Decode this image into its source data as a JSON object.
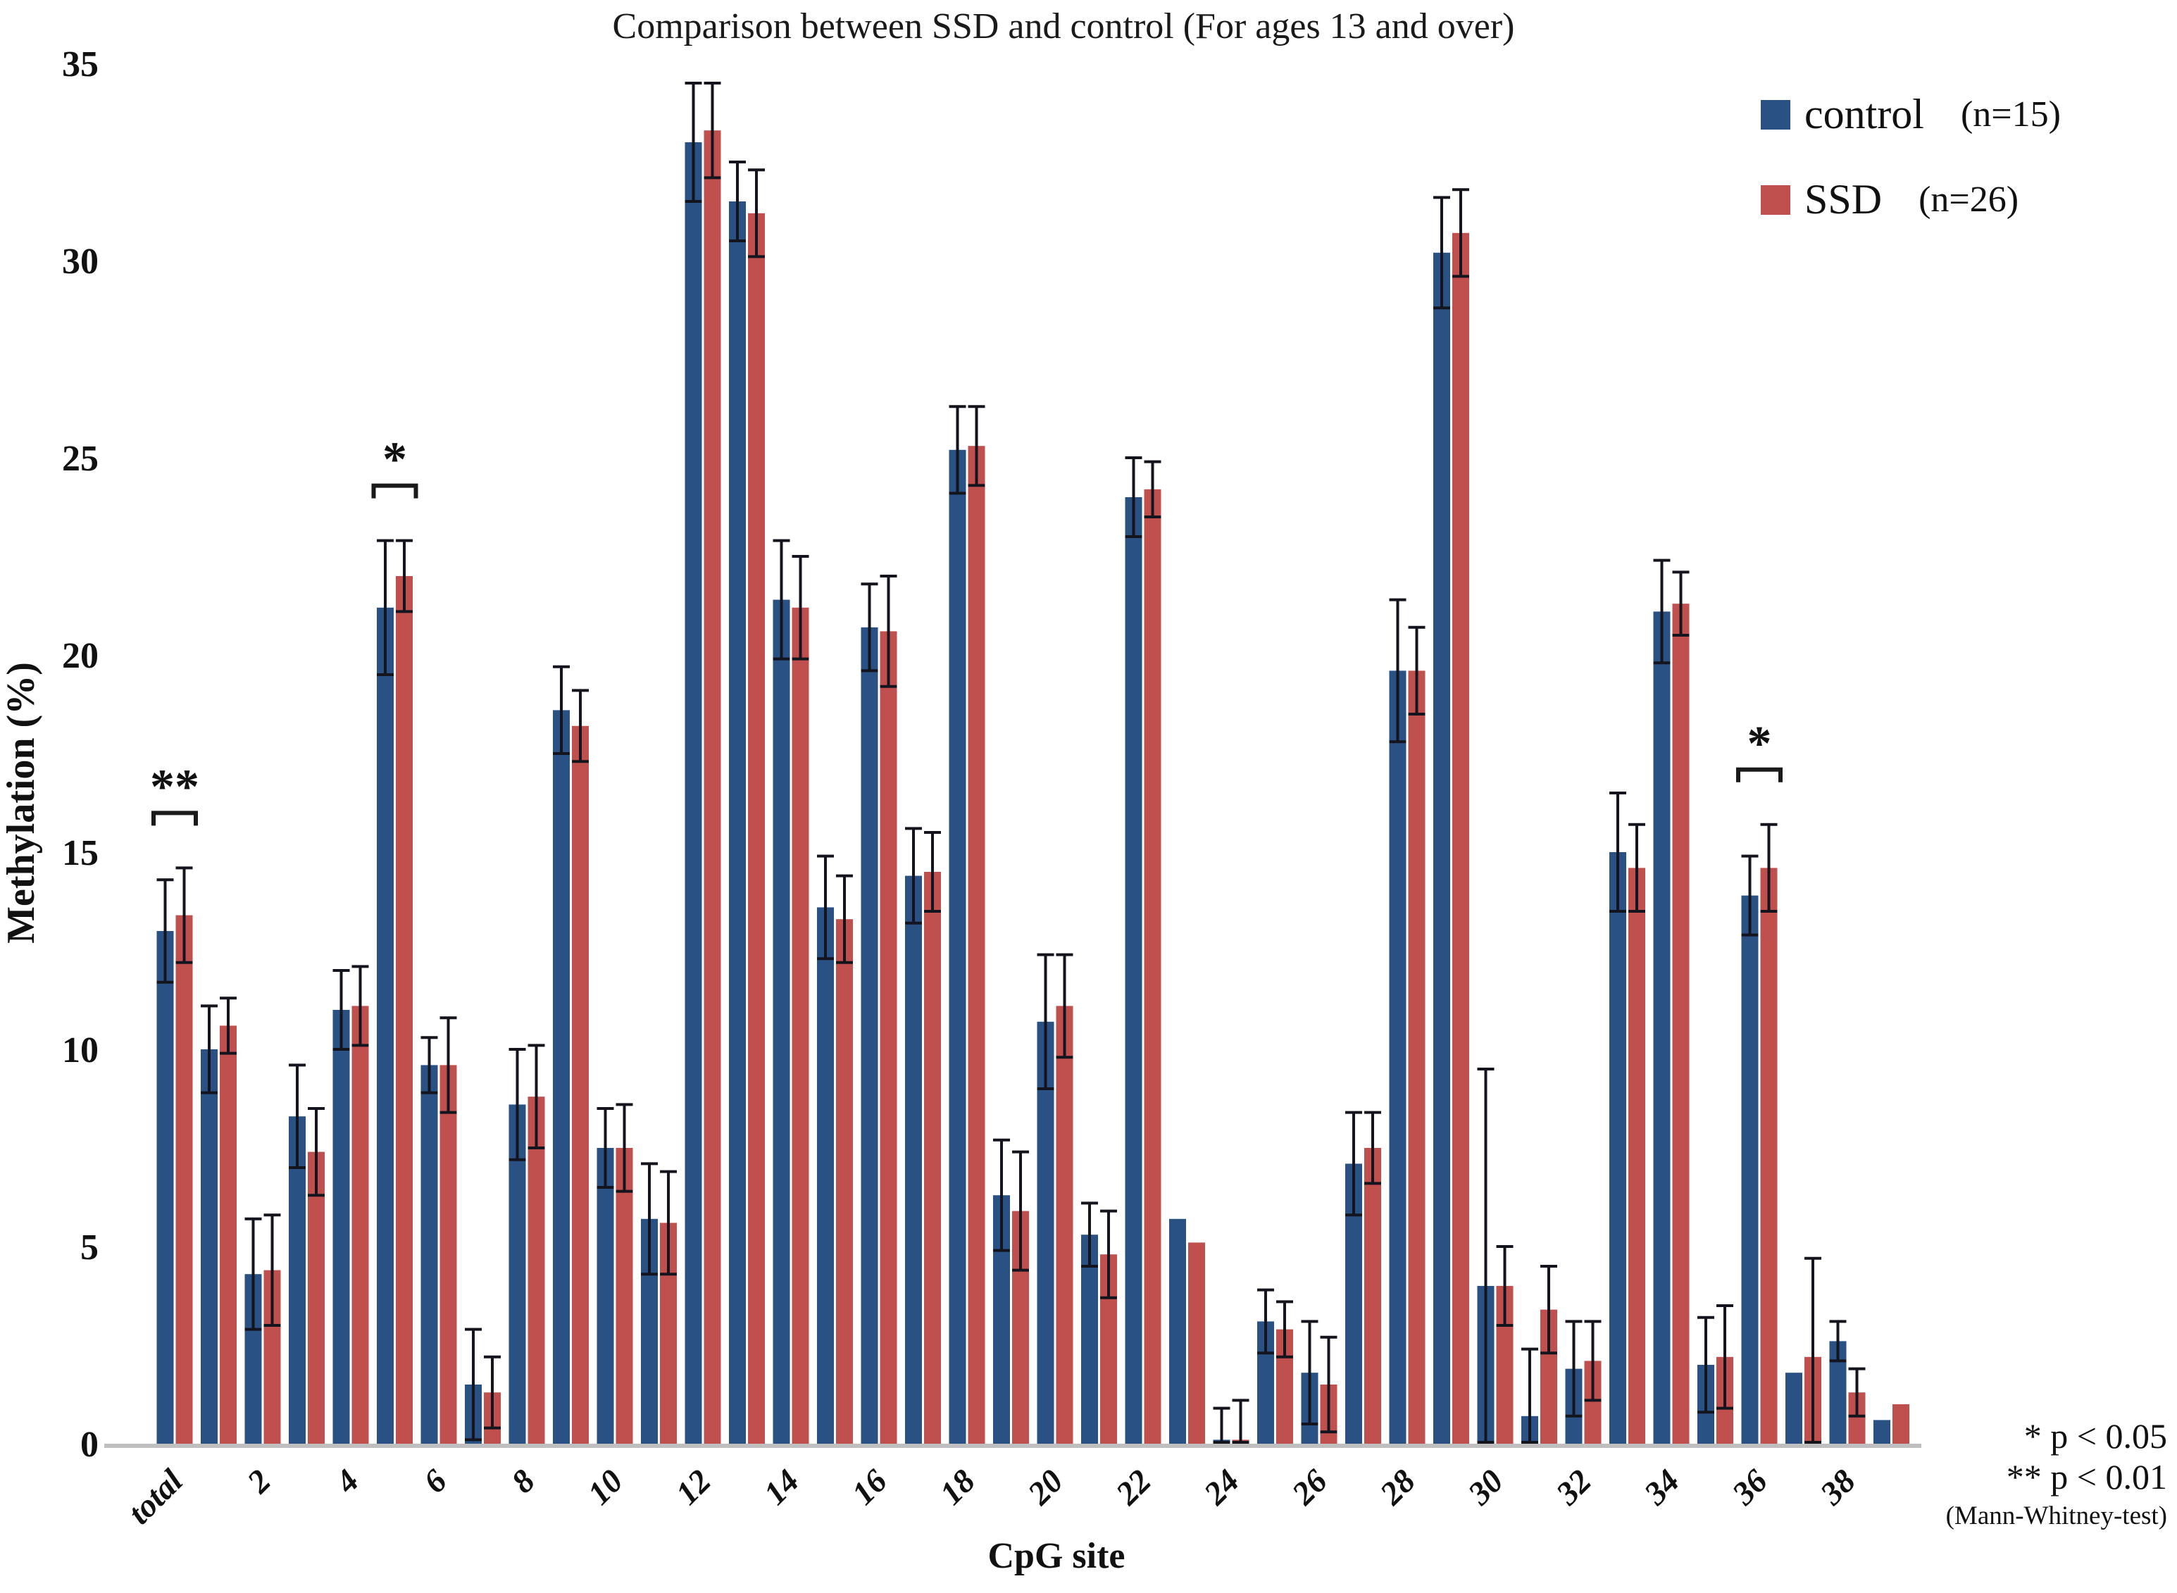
{
  "chart_data": {
    "type": "bar",
    "title": "Comparison between SSD and control (For ages 13 and over)",
    "xlabel": "CpG site",
    "ylabel": "Methylation (%)",
    "ylim": [
      0,
      35
    ],
    "yticks": [
      35,
      30,
      25,
      20,
      15,
      10,
      5,
      0
    ],
    "grid": false,
    "legend_position": "top-right",
    "axis_line_color": "#bfbfbf",
    "error_bar_color": "#14141e",
    "categories": [
      "total",
      "1",
      "2",
      "3",
      "4",
      "5",
      "6",
      "7",
      "8",
      "9",
      "10",
      "11",
      "12",
      "13",
      "14",
      "15",
      "16",
      "17",
      "18",
      "19",
      "20",
      "21",
      "22",
      "23",
      "24",
      "25",
      "26",
      "27",
      "28",
      "29",
      "30",
      "31",
      "32",
      "33",
      "34",
      "35",
      "36",
      "37",
      "38",
      "39"
    ],
    "xtick_labels": [
      "total",
      "2",
      "4",
      "6",
      "8",
      "10",
      "12",
      "14",
      "16",
      "18",
      "20",
      "22",
      "24",
      "26",
      "28",
      "30",
      "32",
      "34",
      "36",
      "38"
    ],
    "series": [
      {
        "name": "control",
        "n_label": "(n=15)",
        "color": "#2a5183",
        "values": [
          13.0,
          10.0,
          4.3,
          8.3,
          11.0,
          21.2,
          9.6,
          1.5,
          8.6,
          18.6,
          7.5,
          5.7,
          33.0,
          31.5,
          21.4,
          13.6,
          20.7,
          14.4,
          25.2,
          6.3,
          10.7,
          5.3,
          24.0,
          5.7,
          0.1,
          3.1,
          1.8,
          7.1,
          19.6,
          30.2,
          4.0,
          0.7,
          1.9,
          15.0,
          21.1,
          2.0,
          13.9,
          1.8,
          2.6,
          0.6
        ],
        "errors": [
          1.3,
          1.1,
          1.4,
          1.3,
          1.0,
          1.7,
          0.7,
          1.4,
          1.4,
          1.1,
          1.0,
          1.4,
          1.5,
          1.0,
          1.5,
          1.3,
          1.1,
          1.2,
          1.1,
          1.4,
          1.7,
          0.8,
          1.0,
          0,
          0.8,
          0.8,
          1.3,
          1.3,
          1.8,
          1.4,
          5.5,
          1.7,
          1.2,
          1.5,
          1.3,
          1.2,
          1.0,
          0,
          0.5,
          0
        ]
      },
      {
        "name": "SSD",
        "n_label": "(n=26)",
        "color": "#c0504d",
        "values": [
          13.4,
          10.6,
          4.4,
          7.4,
          11.1,
          22.0,
          9.6,
          1.3,
          8.8,
          18.2,
          7.5,
          5.6,
          33.3,
          31.2,
          21.2,
          13.3,
          20.6,
          14.5,
          25.3,
          5.9,
          11.1,
          4.8,
          24.2,
          5.1,
          0.1,
          2.9,
          1.5,
          7.5,
          19.6,
          30.7,
          4.0,
          3.4,
          2.1,
          14.6,
          21.3,
          2.2,
          14.6,
          2.2,
          1.3,
          1.0
        ],
        "errors": [
          1.2,
          0.7,
          1.4,
          1.1,
          1.0,
          0.9,
          1.2,
          0.9,
          1.3,
          0.9,
          1.1,
          1.3,
          1.2,
          1.1,
          1.3,
          1.1,
          1.4,
          1.0,
          1.0,
          1.5,
          1.3,
          1.1,
          0.7,
          0,
          1.0,
          0.7,
          1.2,
          0.9,
          1.1,
          1.1,
          1.0,
          1.1,
          1.0,
          1.1,
          0.8,
          1.3,
          1.1,
          2.5,
          0.6,
          0
        ]
      }
    ],
    "significance_markers": [
      {
        "category": "total",
        "label": "**"
      },
      {
        "category": "5",
        "label": "*"
      },
      {
        "category": "36",
        "label": "*"
      }
    ],
    "footnotes": [
      "* p < 0.05",
      "** p < 0.01",
      "(Mann-Whitney-test)"
    ]
  }
}
